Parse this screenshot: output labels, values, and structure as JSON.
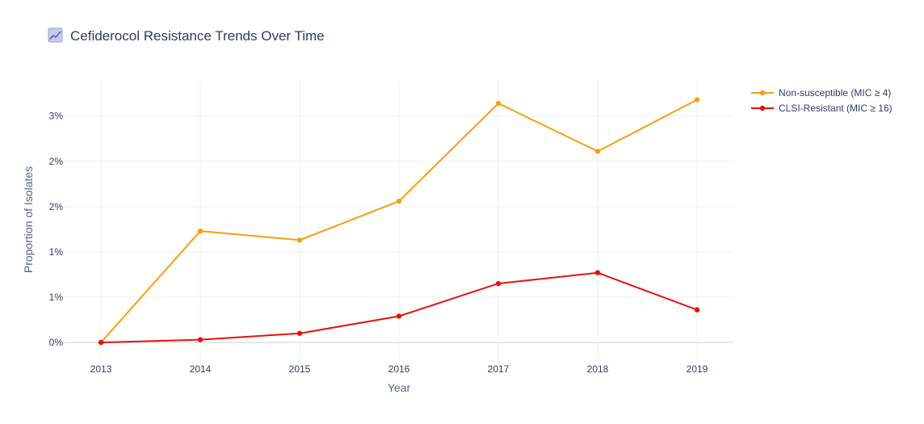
{
  "chart_data": {
    "type": "line",
    "title": "Cefiderocol Resistance Trends Over Time",
    "title_icon": "chart-increasing-icon",
    "xlabel": "Year",
    "ylabel": "Proportion of Isolates",
    "x": [
      2013,
      2014,
      2015,
      2016,
      2017,
      2018,
      2019
    ],
    "ylim": [
      -0.0025,
      0.0289
    ],
    "y_ticks": [
      0,
      0.005,
      0.01,
      0.015,
      0.02,
      0.025
    ],
    "y_tick_labels": [
      "0%",
      "1%",
      "1%",
      "2%",
      "2%",
      "3%"
    ],
    "grid": true,
    "legend_position": "top-right",
    "series": [
      {
        "name": "Non-susceptible (MIC ≥ 4)",
        "color": "#f5a00f",
        "values": [
          0.0,
          0.0123,
          0.0113,
          0.0156,
          0.0264,
          0.0211,
          0.0268
        ]
      },
      {
        "name": "CLSI-Resistant (MIC ≥ 16)",
        "color": "#e8110f",
        "values": [
          0.0,
          0.0003,
          0.001,
          0.0029,
          0.0065,
          0.0077,
          0.0036
        ]
      }
    ]
  }
}
